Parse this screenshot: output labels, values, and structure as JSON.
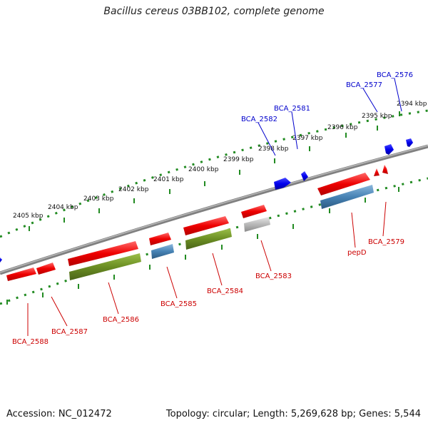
{
  "header": {
    "title": "Bacillus cereus 03BB102, complete genome"
  },
  "footer": {
    "accession": "Accession: NC_012472",
    "summary": "Topology: circular; Length: 5,269,628 bp; Genes: 5,544"
  },
  "scale": {
    "unit": "kbp",
    "ticks": [
      {
        "value": 2394,
        "label": "2394 kbp"
      },
      {
        "value": 2395,
        "label": "2395 kbp"
      },
      {
        "value": 2396,
        "label": "2396 kbp"
      },
      {
        "value": 2397,
        "label": "2397 kbp"
      },
      {
        "value": 2398,
        "label": "2398 kbp"
      },
      {
        "value": 2399,
        "label": "2399 kbp"
      },
      {
        "value": 2400,
        "label": "2400 kbp"
      },
      {
        "value": 2401,
        "label": "2401 kbp"
      },
      {
        "value": 2402,
        "label": "2402 kbp"
      },
      {
        "value": 2403,
        "label": "2403 kbp"
      },
      {
        "value": 2404,
        "label": "2404 kbp"
      },
      {
        "value": 2405,
        "label": "2405 kbp"
      }
    ]
  },
  "colors": {
    "cds": "#ee0000",
    "gene": "#6b8e23",
    "other": "#4682b4",
    "pseudo": "#b0b0b0",
    "forward_small": "#0000ee",
    "backbone": "#808080",
    "ticks": "#228b22",
    "forward_label": "#0000cc",
    "reverse_label": "#cc0000"
  },
  "genes": {
    "forward": [
      "BCA_2576",
      "BCA_2577",
      "BCA_2581",
      "BCA_2582"
    ],
    "reverse": [
      "BCA_2579",
      "pepD",
      "BCA_2583",
      "BCA_2584",
      "BCA_2585",
      "BCA_2586",
      "BCA_2587",
      "BCA_2588"
    ]
  }
}
